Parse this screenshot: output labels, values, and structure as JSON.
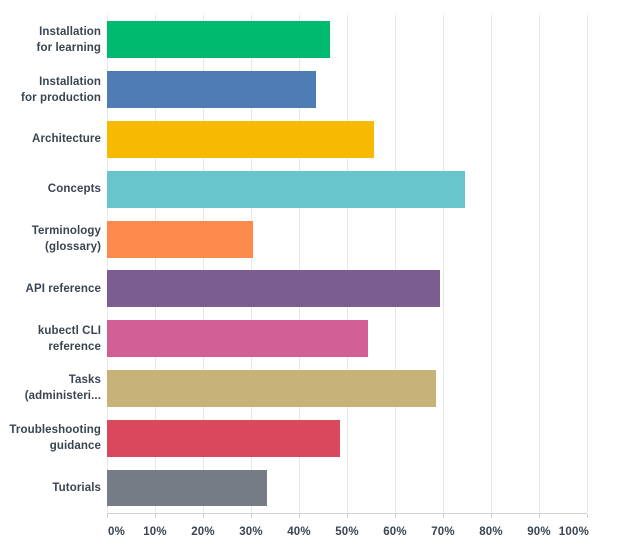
{
  "chart_data": {
    "type": "bar",
    "orientation": "horizontal",
    "title": "",
    "xlabel": "",
    "ylabel": "",
    "xlim": [
      0,
      100
    ],
    "grid": "vertical gridlines on",
    "legend": "none",
    "x_tick_labels": [
      "0%",
      "10%",
      "20%",
      "30%",
      "40%",
      "50%",
      "60%",
      "70%",
      "80%",
      "90%",
      "100%"
    ],
    "categories": [
      "Installation for learning",
      "Installation for production",
      "Architecture",
      "Concepts",
      "Terminology (glossary)",
      "API reference",
      "kubectl CLI reference",
      "Tasks (administeri...",
      "Troubleshooting guidance",
      "Tutorials"
    ],
    "category_display_lines": [
      [
        "Installation",
        "for learning"
      ],
      [
        "Installation",
        "for production"
      ],
      [
        "Architecture"
      ],
      [
        "Concepts"
      ],
      [
        "Terminology",
        "(glossary)"
      ],
      [
        "API reference"
      ],
      [
        "kubectl CLI",
        "reference"
      ],
      [
        "Tasks",
        "(administeri..."
      ],
      [
        "Troubleshooting",
        "guidance"
      ],
      [
        "Tutorials"
      ]
    ],
    "values": [
      46.5,
      43.5,
      55.6,
      74.6,
      30.4,
      69.4,
      54.4,
      68.5,
      48.5,
      33.3
    ],
    "value_unit": "%",
    "bar_colors": [
      "#00bb6f",
      "#4e7cb5",
      "#f7ba00",
      "#68c5cb",
      "#fc8a4d",
      "#7b5d92",
      "#d25f93",
      "#c7b377",
      "#d9485c",
      "#757c85"
    ]
  },
  "style_colors": {
    "background": "#ffffff",
    "label_text": "#3a4551",
    "tick_text": "#3a4551",
    "gridline": "#e8e8e8",
    "axis_line": "#cdd2d6"
  }
}
